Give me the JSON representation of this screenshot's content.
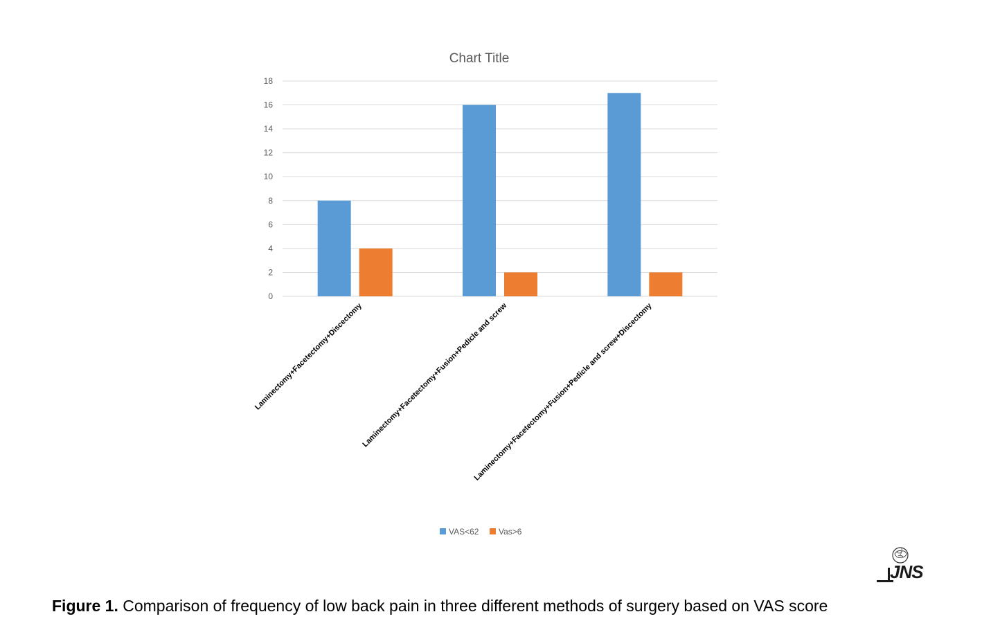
{
  "chart_data": {
    "type": "bar",
    "title": "Chart Title",
    "categories": [
      "Laminectomy+Facetectomy+Discectomy",
      "Laminectomy+Facetectomy+Fusion+Pedicle  and screw",
      "Laminectomy+Facetectomy+Fusion+Pedicle  and screw+Discectomy"
    ],
    "series": [
      {
        "name": "VAS<62",
        "values": [
          8,
          16,
          17
        ],
        "color": "#5B9BD5"
      },
      {
        "name": "Vas>6",
        "values": [
          4,
          2,
          2
        ],
        "color": "#ED7D31"
      }
    ],
    "ylim": [
      0,
      18
    ],
    "yticks": [
      0,
      2,
      4,
      6,
      8,
      10,
      12,
      14,
      16,
      18
    ],
    "xlabel": "",
    "ylabel": "",
    "grid": true,
    "legend_position": "bottom"
  },
  "caption": {
    "label": "Figure 1.",
    "text": " Comparison of frequency of low back pain in three different methods of surgery based on VAS score"
  },
  "logo": {
    "text": "JNS"
  }
}
